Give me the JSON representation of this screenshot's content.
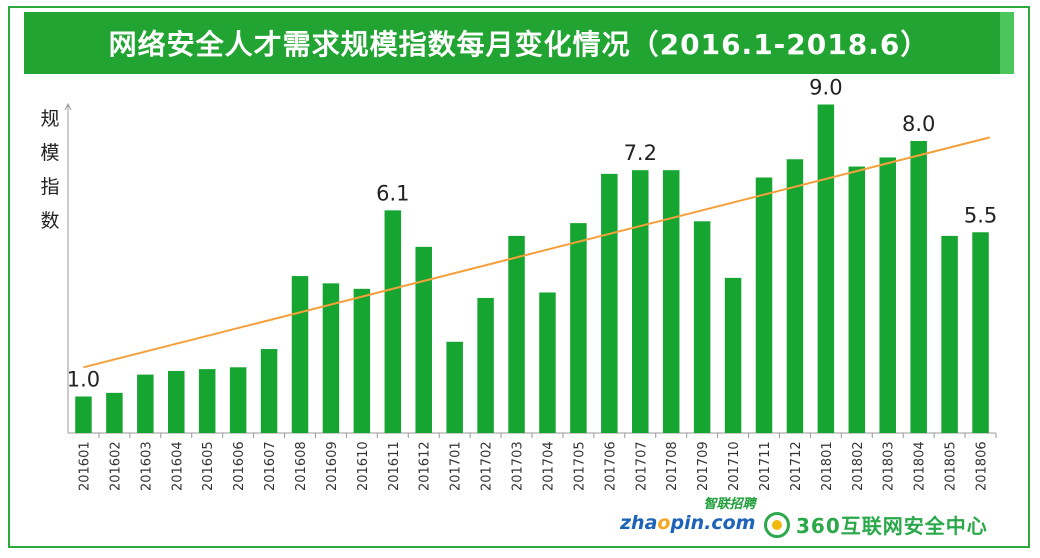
{
  "title": "网络安全人才需求规模指数每月变化情况（2016.1-2018.6）",
  "ylabel": "规模指数",
  "chart_data": {
    "type": "bar",
    "title": "网络安全人才需求规模指数每月变化情况（2016.1-2018.6）",
    "ylabel": "规模指数",
    "xlabel": "",
    "ylim": [
      0,
      10
    ],
    "categories": [
      "201601",
      "201602",
      "201603",
      "201604",
      "201605",
      "201606",
      "201607",
      "201608",
      "201609",
      "201610",
      "201611",
      "201612",
      "201701",
      "201702",
      "201703",
      "201704",
      "201705",
      "201706",
      "201707",
      "201708",
      "201709",
      "201710",
      "201711",
      "201712",
      "201801",
      "201802",
      "201803",
      "201804",
      "201805",
      "201806"
    ],
    "values": [
      1.0,
      1.1,
      1.6,
      1.7,
      1.75,
      1.8,
      2.3,
      4.3,
      4.1,
      3.95,
      6.1,
      5.1,
      2.5,
      3.7,
      5.4,
      3.85,
      5.75,
      7.1,
      7.2,
      7.2,
      5.8,
      4.25,
      7.0,
      7.5,
      9.0,
      7.3,
      7.55,
      8.0,
      5.4,
      5.5
    ],
    "data_labels": [
      {
        "category": "201601",
        "text": "1.0"
      },
      {
        "category": "201611",
        "text": "6.1"
      },
      {
        "category": "201707",
        "text": "7.2"
      },
      {
        "category": "201801",
        "text": "9.0"
      },
      {
        "category": "201804",
        "text": "8.0"
      },
      {
        "category": "201806",
        "text": "5.5"
      }
    ],
    "trendline": {
      "start": 1.8,
      "end": 8.1
    },
    "bar_color": "#17a532",
    "trend_color": "#f6a03c",
    "grid": false
  },
  "footer": {
    "zhaopin_cn": "智联招聘",
    "zhaopin_en_a": "zha",
    "zhaopin_en_o": "o",
    "zhaopin_en_b": "pin.com",
    "logo360": "360互联网安全中心"
  }
}
